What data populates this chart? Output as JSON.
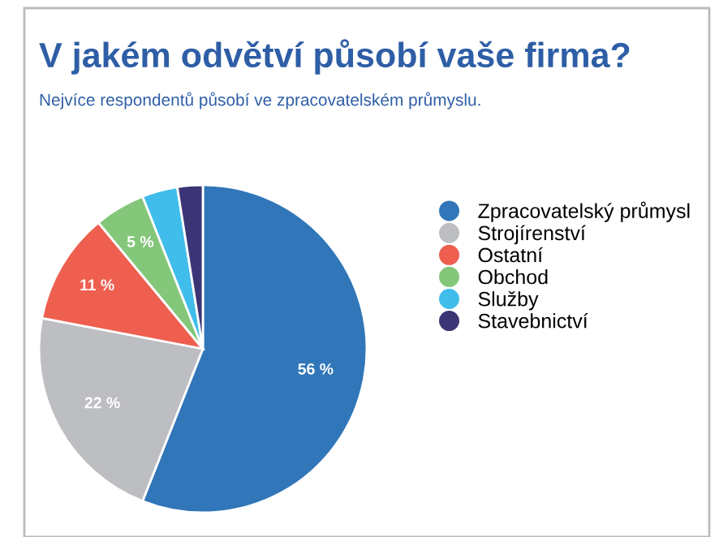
{
  "chart_data": {
    "type": "pie",
    "title": "V jakém odvětví působí vaše firma?",
    "subtitle": "Nejvíce respondentů působí ve zpracovatelském průmyslu.",
    "categories": [
      "Zpracovatelský průmysl",
      "Strojírenství",
      "Ostatní",
      "Obchod",
      "Služby",
      "Stavebnictví"
    ],
    "values": [
      56,
      22,
      11,
      5,
      3.5,
      2.5
    ],
    "value_labels": [
      "56 %",
      "22 %",
      "11 %",
      "5 %",
      null,
      null
    ],
    "colors": [
      "#3176b9",
      "#bdbec2",
      "#ee5f50",
      "#84c77a",
      "#40bdeb",
      "#3b3575"
    ],
    "legend": "right"
  }
}
